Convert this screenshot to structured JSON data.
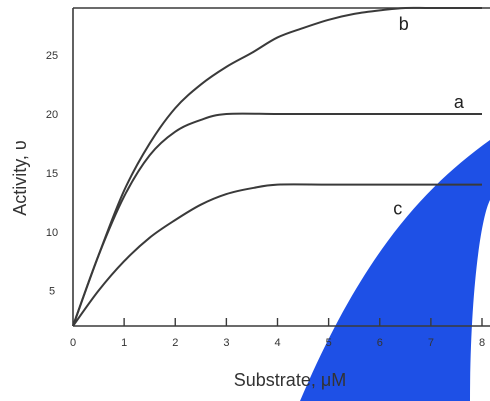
{
  "chart_data": {
    "type": "line",
    "title": "",
    "xlabel": "Substrate, μM",
    "ylabel": "Activity, υ",
    "xlim": [
      0,
      8
    ],
    "ylim": [
      2,
      29
    ],
    "x_ticks": [
      "0",
      "1",
      "2",
      "3",
      "4",
      "5",
      "6",
      "7",
      "8"
    ],
    "y_ticks": [
      "5",
      "10",
      "15",
      "20",
      "25"
    ],
    "grid": false,
    "legend": "none",
    "line_color": "#3a3a3a",
    "watermark_color": "#1e50e6",
    "series": [
      {
        "name": "a",
        "x": [
          0,
          0.5,
          1,
          1.5,
          2,
          2.5,
          3,
          4,
          5,
          6,
          7,
          8
        ],
        "y": [
          2,
          8,
          13,
          16.5,
          18.5,
          19.5,
          20,
          20,
          20,
          20,
          20,
          20
        ]
      },
      {
        "name": "b",
        "x": [
          0,
          0.5,
          1,
          1.5,
          2,
          2.5,
          3,
          3.5,
          4,
          4.5,
          5,
          5.5,
          6,
          6.5,
          7,
          8
        ],
        "y": [
          2,
          8,
          13.5,
          17.5,
          20.5,
          22.5,
          24,
          25.2,
          26.5,
          27.3,
          28,
          28.5,
          28.8,
          29,
          29,
          29
        ]
      },
      {
        "name": "c",
        "x": [
          0,
          0.5,
          1,
          1.5,
          2,
          2.5,
          3,
          3.5,
          4,
          5,
          6,
          7,
          8
        ],
        "y": [
          2,
          5,
          7.5,
          9.5,
          11,
          12.3,
          13.2,
          13.7,
          14,
          14,
          14,
          14,
          14
        ]
      }
    ]
  }
}
